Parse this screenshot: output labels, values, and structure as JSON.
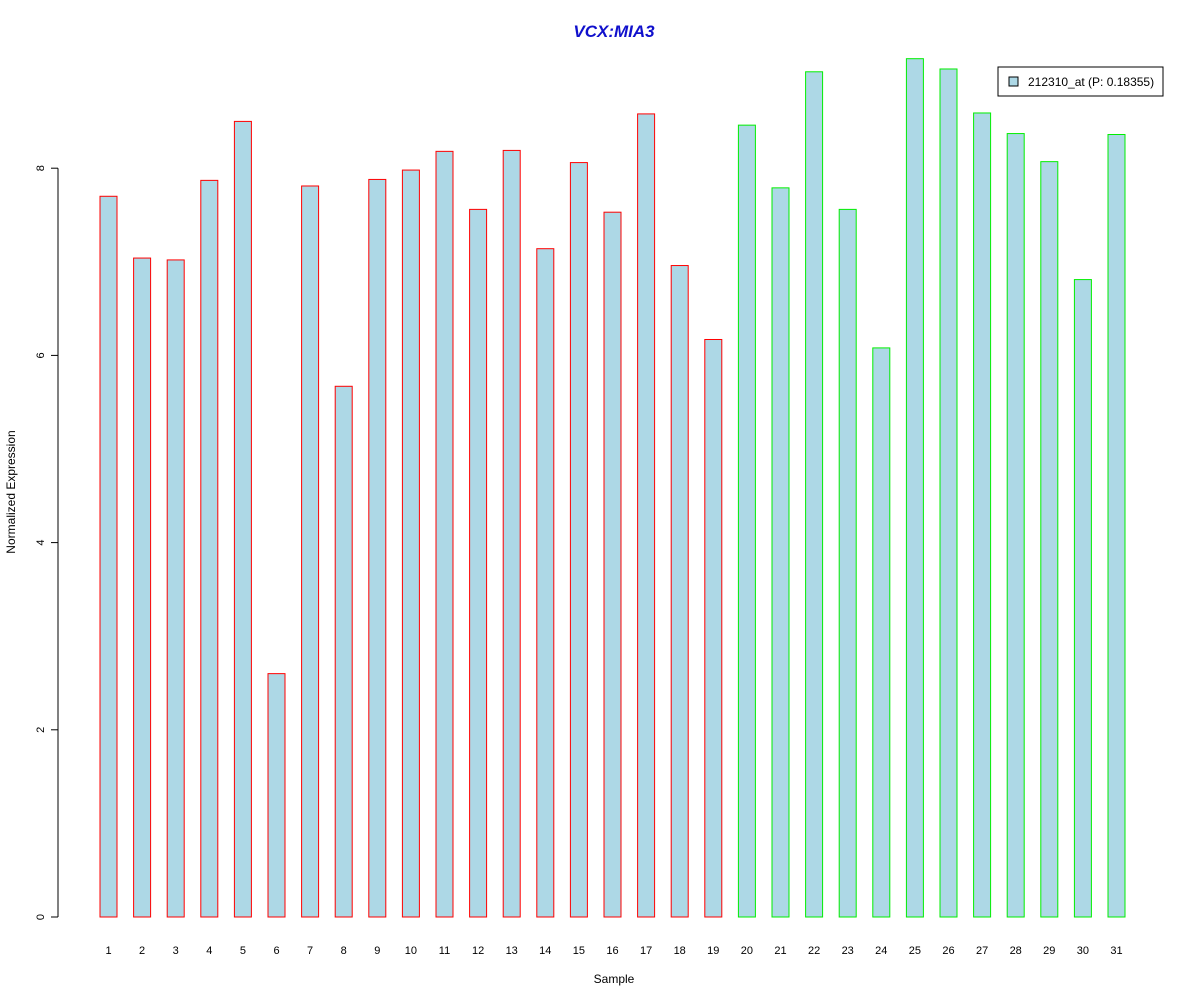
{
  "chart_data": {
    "type": "bar",
    "title": "VCX:MIA3",
    "xlabel": "Sample",
    "ylabel": "Normalized Expression",
    "ylim": [
      0,
      9.2
    ],
    "yticks": [
      0,
      2,
      4,
      6,
      8
    ],
    "categories": [
      "1",
      "2",
      "3",
      "4",
      "5",
      "6",
      "7",
      "8",
      "9",
      "10",
      "11",
      "12",
      "13",
      "14",
      "15",
      "16",
      "17",
      "18",
      "19",
      "20",
      "21",
      "22",
      "23",
      "24",
      "25",
      "26",
      "27",
      "28",
      "29",
      "30",
      "31"
    ],
    "series": [
      {
        "name": "212310_at (P: 0.18355)",
        "values": [
          7.7,
          7.04,
          7.02,
          7.87,
          8.5,
          2.6,
          7.81,
          5.67,
          7.88,
          7.98,
          8.18,
          7.56,
          8.19,
          7.14,
          8.06,
          7.53,
          8.58,
          6.96,
          6.17,
          8.46,
          7.79,
          9.03,
          7.56,
          6.08,
          9.17,
          9.06,
          8.59,
          8.37,
          8.07,
          6.81,
          8.36
        ],
        "group": [
          "a",
          "a",
          "a",
          "a",
          "a",
          "a",
          "a",
          "a",
          "a",
          "a",
          "a",
          "a",
          "a",
          "a",
          "a",
          "a",
          "a",
          "a",
          "a",
          "b",
          "b",
          "b",
          "b",
          "b",
          "b",
          "b",
          "b",
          "b",
          "b",
          "b",
          "b"
        ]
      }
    ],
    "legend": {
      "label": "212310_at (P: 0.18355)",
      "placement": "top-right"
    },
    "colors": {
      "bar_fill": "#add8e6",
      "group_a_border": "#ff0000",
      "group_b_border": "#00ee00",
      "title": "#1010cc"
    },
    "grid": false
  }
}
